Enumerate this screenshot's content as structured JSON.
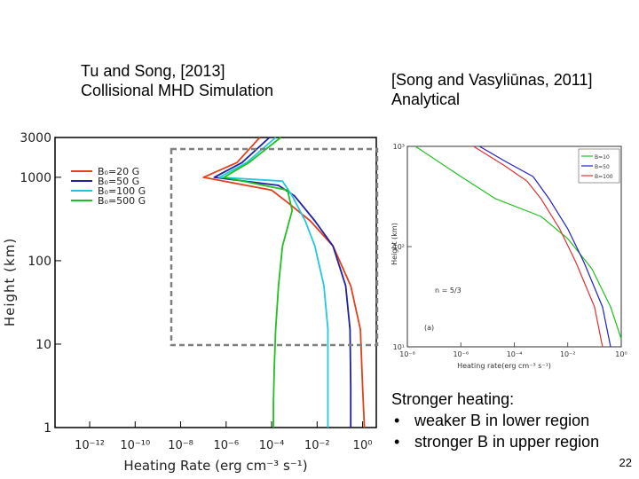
{
  "slide": {
    "caption_left_line1": "Tu and Song, [2013]",
    "caption_left_line2": "Collisional MHD Simulation",
    "caption_right_line1": "[Song and Vasyliūnas, 2011]",
    "caption_right_line2": "Analytical",
    "notes_title": "Stronger heating:",
    "notes": [
      "weaker B in lower region",
      "stronger B in upper region"
    ],
    "page_number": "22"
  },
  "chart_data": [
    {
      "type": "line",
      "xlabel": "Heating Rate (erg cm⁻³ s⁻¹)",
      "ylabel": "Height (km)",
      "x_scale": "log",
      "y_scale": "log",
      "xlim": [
        3e-14,
        4
      ],
      "ylim": [
        1,
        3000
      ],
      "x_ticks": [
        "10⁻¹²",
        "10⁻¹⁰",
        "10⁻⁸",
        "10⁻⁶",
        "10⁻⁴",
        "10⁻²",
        "10⁰"
      ],
      "y_ticks": [
        "1",
        "10",
        "100",
        "1000",
        "3000"
      ],
      "legend_position": "top-left",
      "zoom_box_note": "dashed grey rectangle marks zoomed region",
      "series": [
        {
          "name": "B₀=20 G",
          "color": "#e0401c",
          "x": [
            3e-05,
            3e-06,
            1e-07,
            0.0001,
            0.0005,
            0.005,
            0.05,
            0.3,
            0.8,
            1.0,
            1.2
          ],
          "y": [
            3000,
            1500,
            1000,
            700,
            500,
            300,
            150,
            50,
            15,
            3,
            1
          ]
        },
        {
          "name": "B₀=50 G",
          "color": "#2020a0",
          "x": [
            8e-05,
            5e-06,
            3e-07,
            0.0002,
            0.001,
            0.008,
            0.05,
            0.18,
            0.28,
            0.3,
            0.3
          ],
          "y": [
            3000,
            1500,
            1000,
            800,
            600,
            300,
            150,
            50,
            15,
            3,
            1
          ]
        },
        {
          "name": "B₀=100 G",
          "color": "#20c8e0",
          "x": [
            0.00015,
            8e-06,
            5e-07,
            0.0003,
            0.0008,
            0.003,
            0.008,
            0.02,
            0.03,
            0.03,
            0.03
          ],
          "y": [
            3000,
            1500,
            1000,
            900,
            600,
            300,
            150,
            50,
            15,
            3,
            1
          ]
        },
        {
          "name": "B₀=500 G",
          "color": "#20c020",
          "x": [
            0.00025,
            1e-05,
            8e-07,
            0.0005,
            0.0008,
            0.0003,
            0.0002,
            0.00015,
            0.00013,
            0.00012,
            0.00012
          ],
          "y": [
            3000,
            1500,
            1000,
            700,
            400,
            150,
            50,
            15,
            5,
            2,
            1
          ]
        }
      ]
    },
    {
      "type": "line",
      "xlabel": "Heating rate(erg cm⁻³ s⁻¹)",
      "ylabel": "Height (km)",
      "x_scale": "log",
      "y_scale": "log",
      "xlim": [
        1e-08,
        1
      ],
      "ylim": [
        10,
        1000
      ],
      "x_ticks": [
        "10⁻⁸",
        "10⁻⁶",
        "10⁻⁴",
        "10⁻²",
        "10⁰"
      ],
      "y_ticks": [
        "10¹",
        "10²",
        "10³"
      ],
      "annotation": "n = 5/3",
      "panel_label": "(a)",
      "legend_position": "top-right",
      "legend_entries": [
        "B=10",
        "B=50",
        "B=100"
      ],
      "series": [
        {
          "name": "B=10",
          "color": "#20c020",
          "x": [
            2e-08,
            1e-06,
            2e-05,
            0.001,
            0.01,
            0.08,
            0.4,
            1
          ],
          "y": [
            1000,
            500,
            300,
            200,
            120,
            60,
            25,
            12
          ]
        },
        {
          "name": "B=50",
          "color": "#2020c0",
          "x": [
            5e-06,
            5e-05,
            0.0005,
            0.002,
            0.01,
            0.04,
            0.2,
            0.4
          ],
          "y": [
            1000,
            700,
            500,
            300,
            150,
            70,
            25,
            10
          ]
        },
        {
          "name": "B=100",
          "color": "#e03030",
          "x": [
            3e-06,
            4e-05,
            0.0003,
            0.001,
            0.005,
            0.02,
            0.1,
            0.2
          ],
          "y": [
            1000,
            650,
            450,
            300,
            150,
            70,
            25,
            10
          ]
        }
      ]
    }
  ]
}
